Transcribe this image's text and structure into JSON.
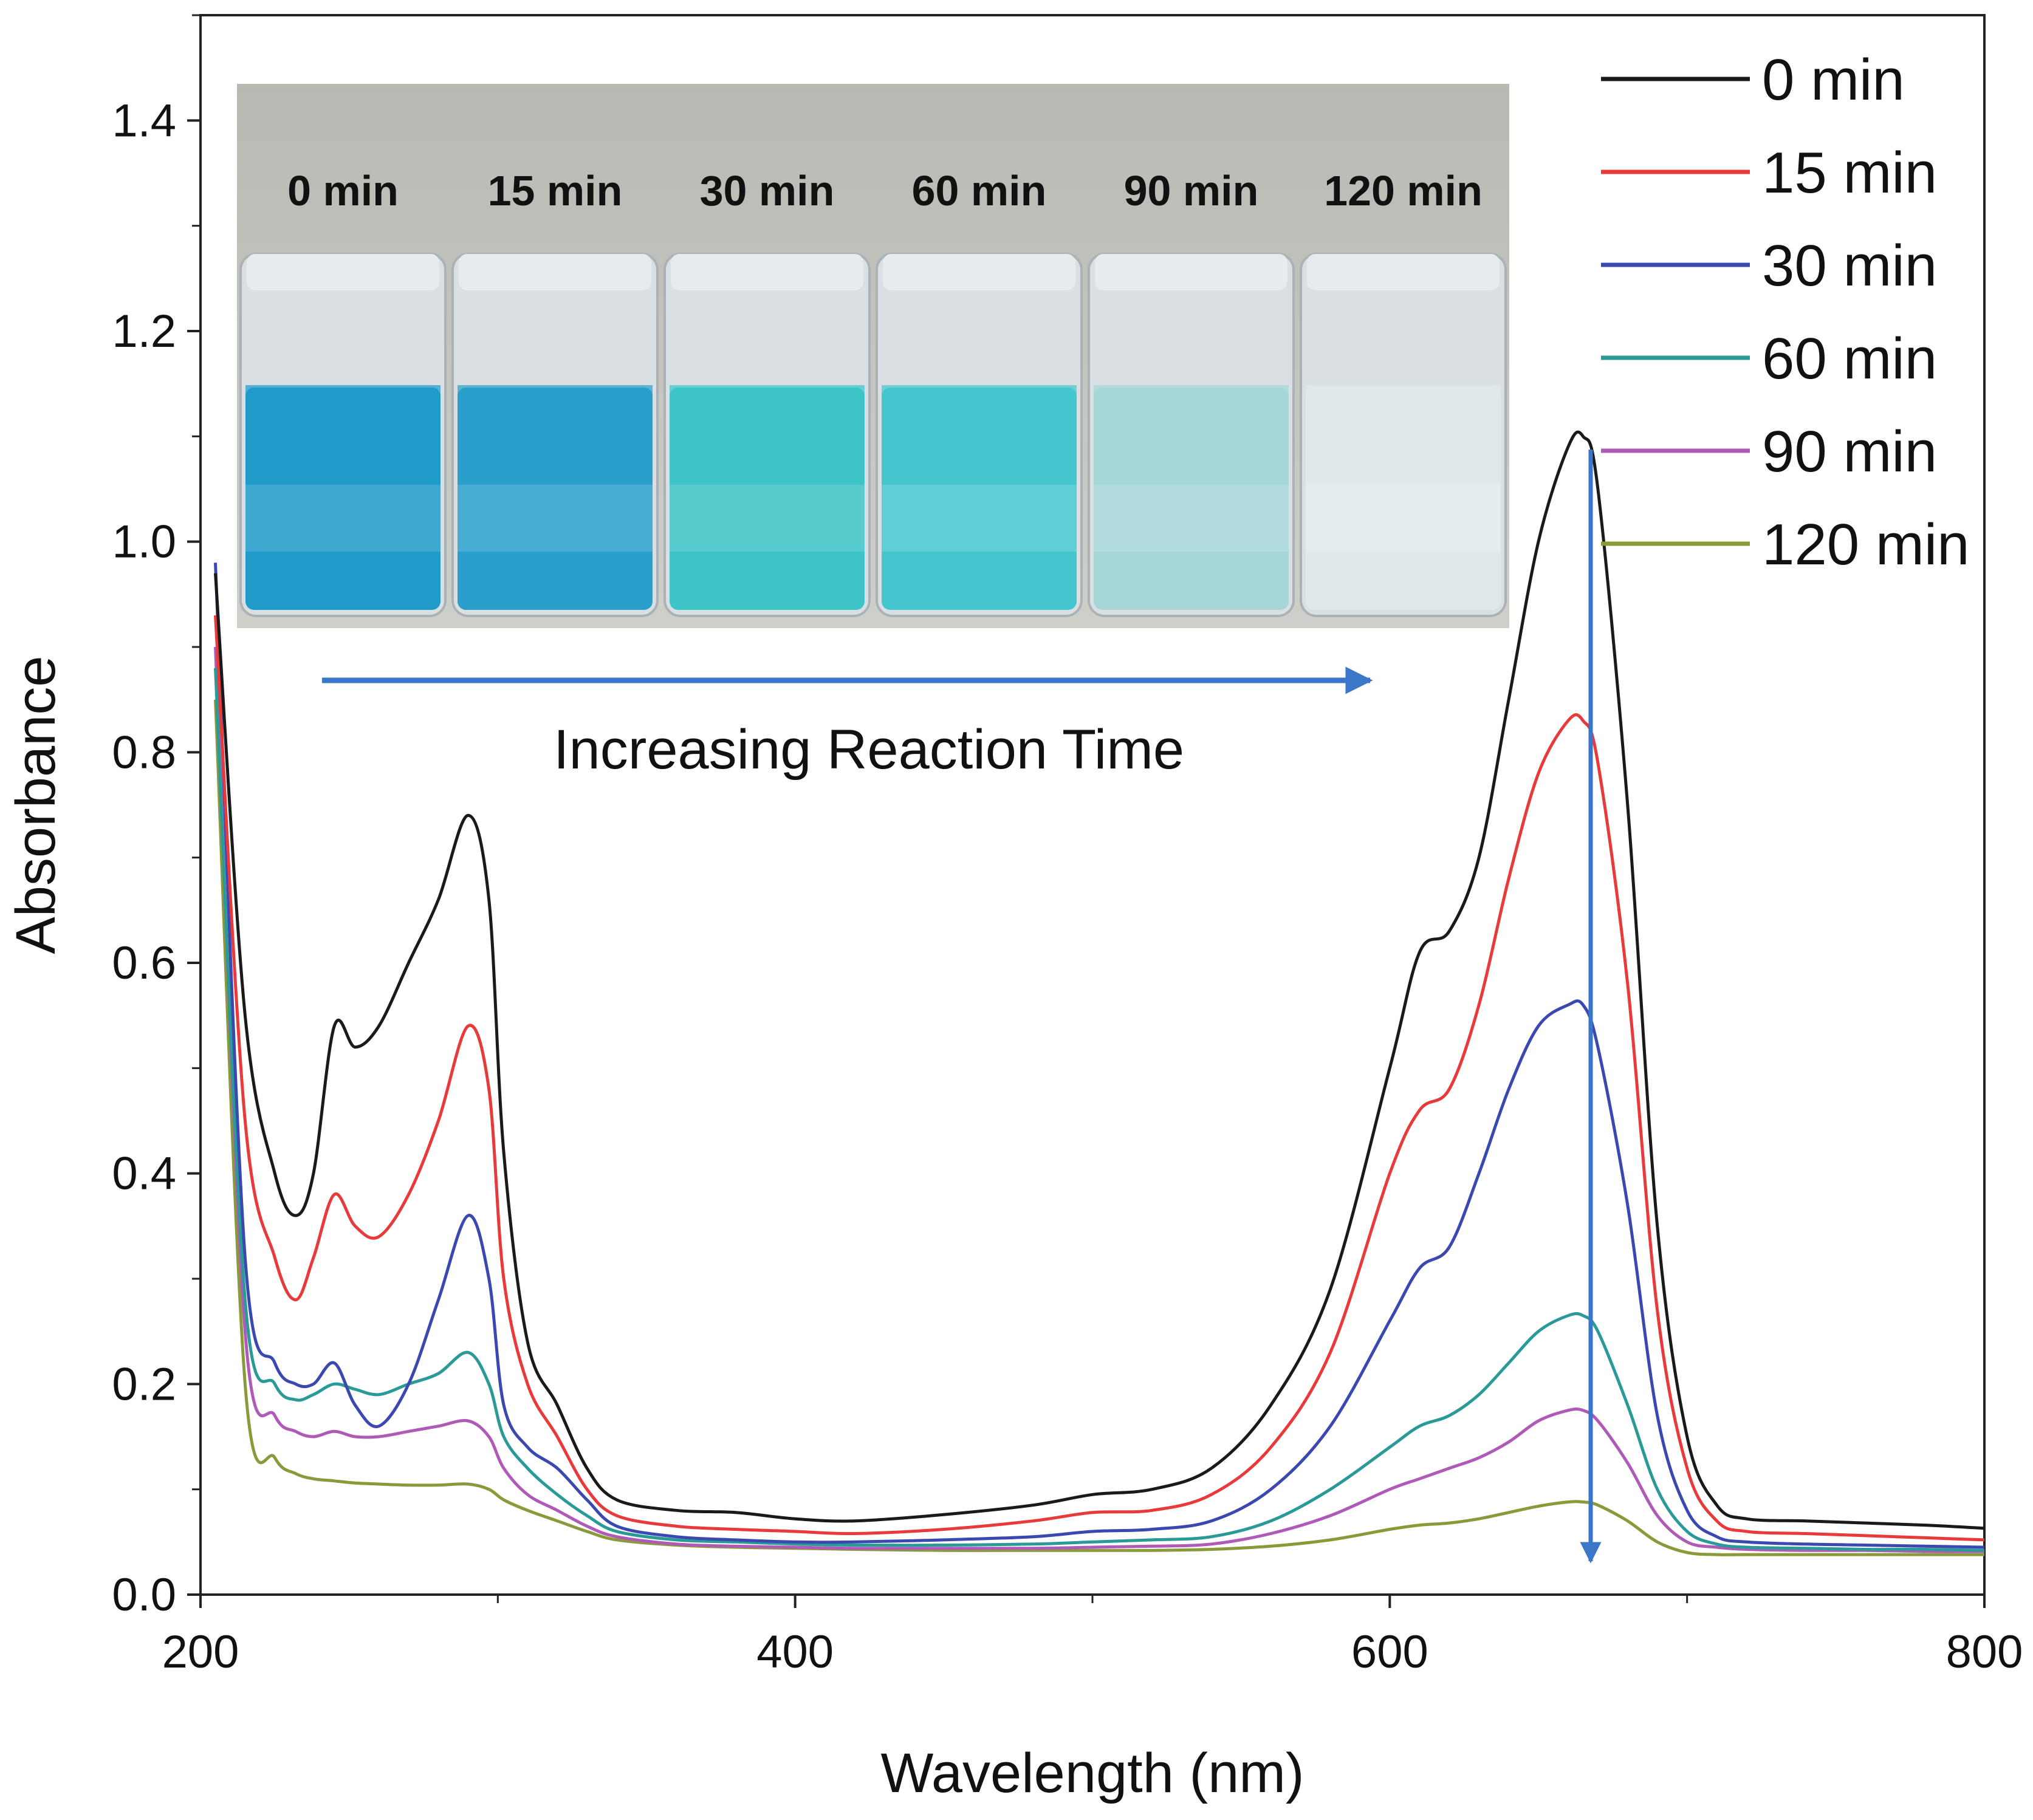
{
  "chart_data": {
    "type": "line",
    "xlabel": "Wavelength (nm)",
    "ylabel": "Absorbance",
    "xlim": [
      200,
      800
    ],
    "ylim": [
      0.0,
      1.5
    ],
    "xticks": [
      200,
      400,
      600,
      800
    ],
    "xtick_labels": [
      "200",
      "400",
      "600",
      "800"
    ],
    "yticks": [
      0.0,
      0.2,
      0.4,
      0.6,
      0.8,
      1.0,
      1.2,
      1.4
    ],
    "ytick_labels": [
      "0.0",
      "0.2",
      "0.4",
      "0.6",
      "0.8",
      "1.0",
      "1.2",
      "1.4"
    ],
    "grid": false,
    "legend_position": "top-right",
    "series": [
      {
        "name": "0 min",
        "color": "#1a1a1a",
        "x": [
          205,
          215,
          225,
          232,
          238,
          245,
          252,
          260,
          270,
          280,
          290,
          297,
          302,
          310,
          320,
          330,
          340,
          360,
          380,
          400,
          420,
          450,
          480,
          500,
          520,
          540,
          560,
          580,
          600,
          610,
          620,
          630,
          640,
          650,
          660,
          665,
          670,
          680,
          690,
          700,
          710,
          720,
          740,
          760,
          780,
          800
        ],
        "y": [
          0.97,
          0.55,
          0.4,
          0.36,
          0.4,
          0.54,
          0.52,
          0.54,
          0.6,
          0.66,
          0.74,
          0.66,
          0.42,
          0.24,
          0.18,
          0.12,
          0.09,
          0.08,
          0.078,
          0.072,
          0.07,
          0.076,
          0.085,
          0.095,
          0.1,
          0.12,
          0.18,
          0.29,
          0.5,
          0.61,
          0.63,
          0.7,
          0.85,
          1.0,
          1.09,
          1.1,
          1.05,
          0.75,
          0.35,
          0.15,
          0.085,
          0.072,
          0.07,
          0.068,
          0.066,
          0.063
        ]
      },
      {
        "name": "15 min",
        "color": "#e83a3a",
        "x": [
          205,
          215,
          225,
          232,
          238,
          245,
          252,
          260,
          270,
          280,
          290,
          297,
          302,
          310,
          320,
          330,
          340,
          360,
          380,
          400,
          420,
          450,
          480,
          500,
          520,
          540,
          560,
          580,
          600,
          610,
          620,
          630,
          640,
          650,
          660,
          665,
          670,
          680,
          690,
          700,
          710,
          720,
          740,
          760,
          780,
          800
        ],
        "y": [
          0.93,
          0.45,
          0.32,
          0.28,
          0.32,
          0.38,
          0.35,
          0.34,
          0.38,
          0.45,
          0.54,
          0.48,
          0.3,
          0.2,
          0.15,
          0.1,
          0.075,
          0.065,
          0.062,
          0.06,
          0.058,
          0.062,
          0.07,
          0.078,
          0.08,
          0.095,
          0.14,
          0.23,
          0.4,
          0.46,
          0.48,
          0.56,
          0.68,
          0.78,
          0.83,
          0.83,
          0.79,
          0.58,
          0.27,
          0.12,
          0.07,
          0.06,
          0.058,
          0.056,
          0.054,
          0.052
        ]
      },
      {
        "name": "30 min",
        "color": "#3a48b0",
        "x": [
          205,
          215,
          225,
          232,
          238,
          245,
          252,
          260,
          270,
          280,
          290,
          297,
          302,
          310,
          320,
          330,
          340,
          360,
          380,
          400,
          420,
          450,
          480,
          500,
          520,
          540,
          560,
          580,
          600,
          610,
          620,
          630,
          640,
          650,
          660,
          665,
          670,
          680,
          690,
          700,
          710,
          720,
          740,
          760,
          780,
          800
        ],
        "y": [
          0.98,
          0.32,
          0.22,
          0.2,
          0.2,
          0.22,
          0.18,
          0.16,
          0.2,
          0.28,
          0.36,
          0.3,
          0.18,
          0.14,
          0.12,
          0.09,
          0.065,
          0.055,
          0.052,
          0.05,
          0.05,
          0.052,
          0.055,
          0.06,
          0.062,
          0.07,
          0.1,
          0.16,
          0.26,
          0.31,
          0.33,
          0.4,
          0.48,
          0.54,
          0.56,
          0.56,
          0.52,
          0.37,
          0.17,
          0.08,
          0.055,
          0.05,
          0.048,
          0.047,
          0.046,
          0.045
        ]
      },
      {
        "name": "60 min",
        "color": "#2a9a98",
        "x": [
          205,
          215,
          225,
          232,
          238,
          245,
          252,
          260,
          270,
          280,
          290,
          297,
          302,
          310,
          320,
          330,
          340,
          360,
          380,
          400,
          420,
          450,
          480,
          500,
          520,
          540,
          560,
          580,
          600,
          610,
          620,
          630,
          640,
          650,
          660,
          665,
          670,
          680,
          690,
          700,
          710,
          720,
          740,
          760,
          780,
          800
        ],
        "y": [
          0.88,
          0.28,
          0.2,
          0.185,
          0.19,
          0.2,
          0.195,
          0.19,
          0.2,
          0.21,
          0.23,
          0.2,
          0.15,
          0.12,
          0.095,
          0.075,
          0.06,
          0.052,
          0.05,
          0.048,
          0.047,
          0.047,
          0.048,
          0.05,
          0.052,
          0.055,
          0.07,
          0.1,
          0.14,
          0.16,
          0.17,
          0.19,
          0.22,
          0.25,
          0.265,
          0.265,
          0.25,
          0.18,
          0.1,
          0.06,
          0.048,
          0.045,
          0.044,
          0.043,
          0.043,
          0.042
        ]
      },
      {
        "name": "90 min",
        "color": "#b05ab8",
        "x": [
          205,
          215,
          225,
          232,
          238,
          245,
          252,
          260,
          270,
          280,
          290,
          297,
          302,
          310,
          320,
          330,
          340,
          360,
          380,
          400,
          420,
          450,
          480,
          500,
          520,
          540,
          560,
          580,
          600,
          610,
          620,
          630,
          640,
          650,
          660,
          665,
          670,
          680,
          690,
          700,
          710,
          720,
          740,
          760,
          780,
          800
        ],
        "y": [
          0.9,
          0.25,
          0.17,
          0.155,
          0.15,
          0.155,
          0.15,
          0.15,
          0.155,
          0.16,
          0.165,
          0.15,
          0.12,
          0.095,
          0.08,
          0.065,
          0.055,
          0.048,
          0.046,
          0.045,
          0.044,
          0.044,
          0.044,
          0.045,
          0.046,
          0.048,
          0.058,
          0.075,
          0.1,
          0.11,
          0.12,
          0.13,
          0.145,
          0.165,
          0.175,
          0.175,
          0.165,
          0.125,
          0.075,
          0.05,
          0.045,
          0.043,
          0.042,
          0.042,
          0.041,
          0.041
        ]
      },
      {
        "name": "120 min",
        "color": "#8a9a3a",
        "x": [
          205,
          215,
          225,
          232,
          238,
          245,
          252,
          260,
          270,
          280,
          290,
          297,
          302,
          310,
          320,
          330,
          340,
          360,
          380,
          400,
          420,
          450,
          480,
          500,
          520,
          540,
          560,
          580,
          600,
          610,
          620,
          630,
          640,
          650,
          660,
          665,
          670,
          680,
          690,
          700,
          710,
          720,
          740,
          760,
          780,
          800
        ],
        "y": [
          0.85,
          0.2,
          0.13,
          0.115,
          0.11,
          0.108,
          0.106,
          0.105,
          0.104,
          0.104,
          0.105,
          0.1,
          0.09,
          0.08,
          0.07,
          0.06,
          0.052,
          0.047,
          0.045,
          0.044,
          0.043,
          0.042,
          0.042,
          0.042,
          0.042,
          0.043,
          0.046,
          0.052,
          0.062,
          0.066,
          0.068,
          0.072,
          0.078,
          0.084,
          0.088,
          0.088,
          0.085,
          0.07,
          0.05,
          0.04,
          0.038,
          0.038,
          0.038,
          0.038,
          0.038,
          0.038
        ]
      }
    ]
  },
  "inset": {
    "labels": [
      "0 min",
      "15 min",
      "30 min",
      "60 min",
      "90 min",
      "120 min"
    ],
    "solution_colors": [
      "#1f9ac9",
      "#2a9fcc",
      "#3cc4c7",
      "#45c6cf",
      "#a6d6d8",
      "#dfe9ec"
    ],
    "arrow_caption": "Increasing Reaction Time",
    "arrow_color": "#3a77c9"
  },
  "markers": {
    "decrease_arrow_color": "#3a77c9"
  }
}
